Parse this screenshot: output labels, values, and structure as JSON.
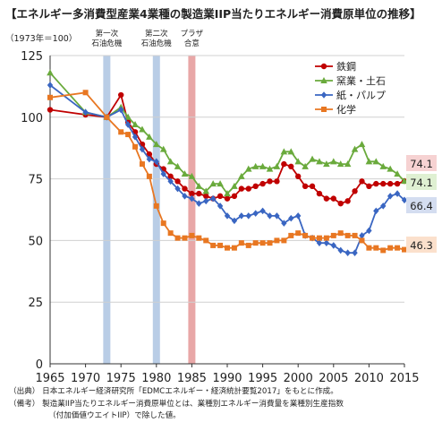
{
  "title": "【エネルギー多消費型産業4業種の製造業IIP当たりエネルギー消費原単位の推移】",
  "unit_label": "（1973年＝100）",
  "events": [
    {
      "label": "第一次\n石油危機",
      "year": 1973
    },
    {
      "label": "第二次\n石油危機",
      "year": 1980
    },
    {
      "label": "プラザ\n合意",
      "year": 1985
    }
  ],
  "notes": {
    "source": "（出典） 日本エネルギー経済研究所「EDMCエネルギー・経済統計要覧2017」をもとに作成。",
    "remark1": "（備考） 製造業IIP当たりエネルギー消費原単位とは、業種別エネルギー消費量を業種別生産指数",
    "remark2": "（付加価値ウエイトIIP）で除した値。"
  },
  "colors": {
    "band_blue": "#b9cde6",
    "band_red": "#e8a7a7"
  },
  "chart_data": {
    "type": "line",
    "xlim": [
      1965,
      2015
    ],
    "ylim": [
      0,
      125
    ],
    "xticks": [
      1965,
      1970,
      1975,
      1980,
      1985,
      1990,
      1995,
      2000,
      2005,
      2010,
      2015
    ],
    "yticks": [
      0,
      25,
      50,
      75,
      100,
      125
    ],
    "grid": true,
    "legend": "top-right",
    "series": [
      {
        "name": "鉄鋼",
        "color": "#c00000",
        "marker": "circle",
        "end_label": "74.1",
        "end_bg": "#f6d2d2",
        "x": [
          1965,
          1970,
          1973,
          1975,
          1976,
          1977,
          1978,
          1979,
          1980,
          1981,
          1982,
          1983,
          1984,
          1985,
          1986,
          1987,
          1988,
          1989,
          1990,
          1991,
          1992,
          1993,
          1994,
          1995,
          1996,
          1997,
          1998,
          1999,
          2000,
          2001,
          2002,
          2003,
          2004,
          2005,
          2006,
          2007,
          2008,
          2009,
          2010,
          2011,
          2012,
          2013,
          2014,
          2015
        ],
        "y": [
          103,
          101,
          100,
          109,
          98,
          94,
          89,
          85,
          81,
          79,
          76,
          74,
          71,
          69,
          69,
          68,
          67,
          68,
          67,
          68,
          71,
          71,
          72,
          73,
          74,
          74,
          81,
          80,
          76,
          72,
          72,
          69,
          67,
          67,
          65,
          66,
          70,
          74,
          72,
          73,
          73,
          73,
          73,
          74.1
        ]
      },
      {
        "name": "窯業・土石",
        "color": "#6aaa3c",
        "marker": "triangle",
        "end_label": "74.1",
        "end_bg": "#dff0d2",
        "x": [
          1965,
          1970,
          1973,
          1975,
          1976,
          1977,
          1978,
          1979,
          1980,
          1981,
          1982,
          1983,
          1984,
          1985,
          1986,
          1987,
          1988,
          1989,
          1990,
          1991,
          1992,
          1993,
          1994,
          1995,
          1996,
          1997,
          1998,
          1999,
          2000,
          2001,
          2002,
          2003,
          2004,
          2005,
          2006,
          2007,
          2008,
          2009,
          2010,
          2011,
          2012,
          2013,
          2014,
          2015
        ],
        "y": [
          118,
          102,
          100,
          104,
          100,
          97,
          95,
          92,
          89,
          87,
          82,
          80,
          77,
          76,
          72,
          70,
          73,
          73,
          69,
          72,
          76,
          79,
          80,
          80,
          79,
          80,
          86,
          86,
          82,
          80,
          83,
          82,
          81,
          82,
          81,
          81,
          87,
          89,
          82,
          82,
          80,
          79,
          77,
          74.1
        ]
      },
      {
        "name": "紙・パルプ",
        "color": "#3a66c2",
        "marker": "diamond",
        "end_label": "66.4",
        "end_bg": "#d4ddf0",
        "x": [
          1965,
          1970,
          1973,
          1975,
          1976,
          1977,
          1978,
          1979,
          1980,
          1981,
          1982,
          1983,
          1984,
          1985,
          1986,
          1987,
          1988,
          1989,
          1990,
          1991,
          1992,
          1993,
          1994,
          1995,
          1996,
          1997,
          1998,
          1999,
          2000,
          2001,
          2002,
          2003,
          2004,
          2005,
          2006,
          2007,
          2008,
          2009,
          2010,
          2011,
          2012,
          2013,
          2014,
          2015
        ],
        "y": [
          113,
          102,
          100,
          103,
          97,
          92,
          87,
          83,
          82,
          77,
          74,
          71,
          68,
          67,
          65,
          66,
          67,
          64,
          60,
          58,
          60,
          60,
          61,
          62,
          60,
          60,
          57,
          59,
          60,
          52,
          51,
          49,
          49,
          48,
          46,
          45,
          45,
          52,
          54,
          62,
          64,
          68,
          69,
          66.4
        ]
      },
      {
        "name": "化学",
        "color": "#e87722",
        "marker": "square",
        "end_label": "46.3",
        "end_bg": "#fbe0cc",
        "x": [
          1965,
          1970,
          1973,
          1975,
          1976,
          1977,
          1978,
          1979,
          1980,
          1981,
          1982,
          1983,
          1984,
          1985,
          1986,
          1987,
          1988,
          1989,
          1990,
          1991,
          1992,
          1993,
          1994,
          1995,
          1996,
          1997,
          1998,
          1999,
          2000,
          2001,
          2002,
          2003,
          2004,
          2005,
          2006,
          2007,
          2008,
          2009,
          2010,
          2011,
          2012,
          2013,
          2014,
          2015
        ],
        "y": [
          108,
          110,
          100,
          94,
          93,
          88,
          81,
          76,
          64,
          57,
          53,
          51,
          51,
          52,
          51,
          50,
          48,
          48,
          47,
          47,
          49,
          48,
          49,
          49,
          49,
          50,
          50,
          52,
          53,
          52,
          51,
          51,
          51,
          52,
          53,
          52,
          52,
          50,
          47,
          47,
          46,
          47,
          47,
          46.3
        ]
      }
    ]
  }
}
